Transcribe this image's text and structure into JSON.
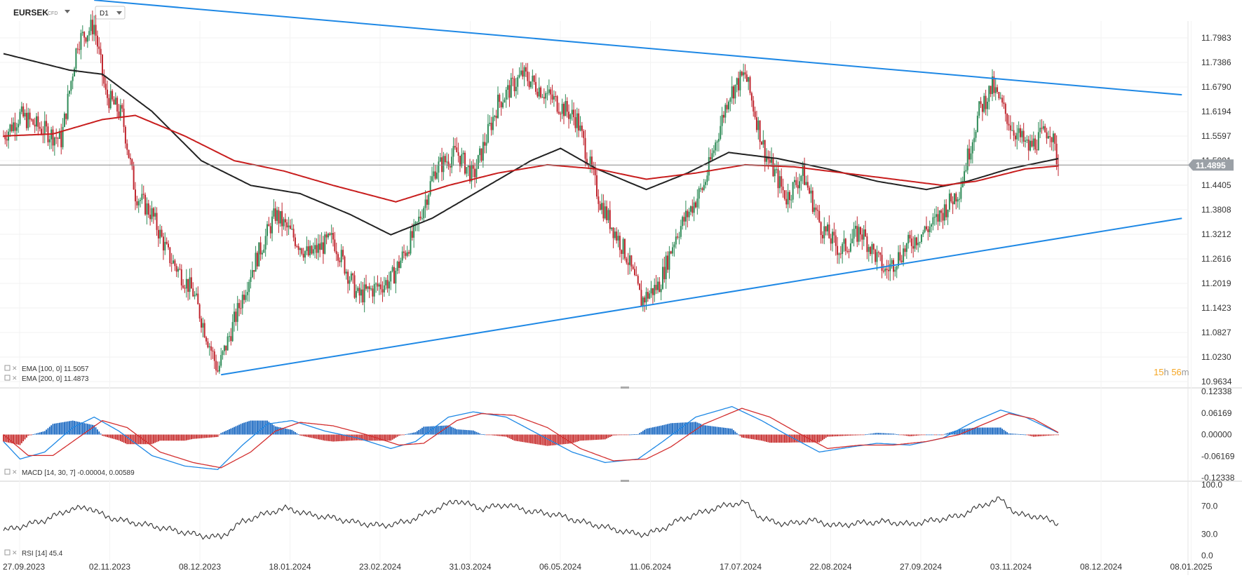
{
  "header": {
    "symbol": "EURSEK",
    "instrument_type": "CFD",
    "timeframe": "D1"
  },
  "colors": {
    "candle_up": "#2e8b57",
    "candle_down": "#c0262f",
    "ema100": "#222222",
    "ema200": "#c81e1e",
    "trendline": "#1e88e5",
    "macd_line": "#1e88e5",
    "signal_line": "#d32f2f",
    "hist_pos": "#1565c0",
    "hist_neg": "#c62828",
    "rsi_line": "#333333",
    "price_tag": "#9aa0a6",
    "timer_accent": "#f5a623"
  },
  "timer": {
    "hours": "15",
    "h_unit": "h",
    "minutes": "56",
    "m_unit": "m"
  },
  "chart_data": [
    {
      "type": "candlestick",
      "pane": "price",
      "symbol": "EURSEK",
      "y_ticks": [
        "11.7983",
        "11.7386",
        "11.6790",
        "11.6194",
        "11.5597",
        "11.5001",
        "11.4405",
        "11.3808",
        "11.3212",
        "11.2616",
        "11.2019",
        "11.1423",
        "11.0827",
        "11.0230",
        "10.9634"
      ],
      "ylim": [
        10.9634,
        11.7983
      ],
      "current_price": "11.4895",
      "x_tick_labels": [
        "27.09.2023",
        "02.11.2023",
        "08.12.2023",
        "18.01.2024",
        "23.02.2024",
        "31.03.2024",
        "06.05.2024",
        "11.06.2024",
        "17.07.2024",
        "22.08.2024",
        "27.09.2024",
        "03.11.2024",
        "08.12.2024",
        "08.01.2025"
      ],
      "series": [
        {
          "name": "EMA [100, 0] 11.5057",
          "kind": "ema",
          "color": "#222222",
          "anchors": [
            [
              0,
              11.76
            ],
            [
              40,
              11.72
            ],
            [
              60,
              11.71
            ],
            [
              90,
              11.62
            ],
            [
              120,
              11.5
            ],
            [
              150,
              11.44
            ],
            [
              180,
              11.42
            ],
            [
              210,
              11.37
            ],
            [
              235,
              11.32
            ],
            [
              260,
              11.36
            ],
            [
              290,
              11.43
            ],
            [
              320,
              11.5
            ],
            [
              338,
              11.53
            ],
            [
              360,
              11.48
            ],
            [
              390,
              11.43
            ],
            [
              415,
              11.47
            ],
            [
              440,
              11.52
            ],
            [
              470,
              11.505
            ],
            [
              500,
              11.48
            ],
            [
              530,
              11.45
            ],
            [
              560,
              11.43
            ],
            [
              585,
              11.45
            ],
            [
              610,
              11.48
            ],
            [
              640,
              11.505
            ]
          ]
        },
        {
          "name": "EMA [200, 0] 11.4873",
          "kind": "ema",
          "color": "#c81e1e",
          "anchors": [
            [
              0,
              11.56
            ],
            [
              30,
              11.565
            ],
            [
              60,
              11.6
            ],
            [
              80,
              11.61
            ],
            [
              110,
              11.56
            ],
            [
              140,
              11.5
            ],
            [
              170,
              11.475
            ],
            [
              200,
              11.44
            ],
            [
              238,
              11.4
            ],
            [
              270,
              11.44
            ],
            [
              300,
              11.47
            ],
            [
              330,
              11.49
            ],
            [
              360,
              11.48
            ],
            [
              390,
              11.455
            ],
            [
              420,
              11.47
            ],
            [
              450,
              11.49
            ],
            [
              480,
              11.485
            ],
            [
              510,
              11.47
            ],
            [
              540,
              11.455
            ],
            [
              570,
              11.44
            ],
            [
              590,
              11.45
            ],
            [
              620,
              11.48
            ],
            [
              640,
              11.4873
            ]
          ]
        }
      ],
      "trendlines": [
        {
          "name": "upper",
          "points": [
            [
              55,
              11.89
            ],
            [
              715,
              11.66
            ]
          ]
        },
        {
          "name": "lower",
          "points": [
            [
              132,
              10.98
            ],
            [
              715,
              11.36
            ]
          ]
        }
      ],
      "legend": [
        "EMA [100, 0] 11.5057",
        "EMA [200, 0] 11.4873"
      ],
      "price_anchors": [
        [
          0,
          11.56
        ],
        [
          10,
          11.61
        ],
        [
          22,
          11.58
        ],
        [
          35,
          11.55
        ],
        [
          45,
          11.79
        ],
        [
          55,
          11.83
        ],
        [
          62,
          11.66
        ],
        [
          72,
          11.61
        ],
        [
          80,
          11.42
        ],
        [
          90,
          11.37
        ],
        [
          100,
          11.27
        ],
        [
          115,
          11.18
        ],
        [
          130,
          10.99
        ],
        [
          150,
          11.23
        ],
        [
          165,
          11.37
        ],
        [
          185,
          11.27
        ],
        [
          200,
          11.31
        ],
        [
          215,
          11.17
        ],
        [
          235,
          11.21
        ],
        [
          250,
          11.33
        ],
        [
          262,
          11.48
        ],
        [
          275,
          11.52
        ],
        [
          285,
          11.46
        ],
        [
          300,
          11.64
        ],
        [
          315,
          11.71
        ],
        [
          330,
          11.66
        ],
        [
          348,
          11.6
        ],
        [
          362,
          11.4
        ],
        [
          378,
          11.27
        ],
        [
          387,
          11.16
        ],
        [
          398,
          11.2
        ],
        [
          408,
          11.32
        ],
        [
          425,
          11.44
        ],
        [
          440,
          11.66
        ],
        [
          450,
          11.71
        ],
        [
          462,
          11.52
        ],
        [
          475,
          11.41
        ],
        [
          485,
          11.47
        ],
        [
          496,
          11.34
        ],
        [
          508,
          11.28
        ],
        [
          520,
          11.33
        ],
        [
          535,
          11.23
        ],
        [
          550,
          11.3
        ],
        [
          565,
          11.35
        ],
        [
          580,
          11.43
        ],
        [
          592,
          11.62
        ],
        [
          600,
          11.68
        ],
        [
          612,
          11.58
        ],
        [
          622,
          11.53
        ],
        [
          635,
          11.58
        ],
        [
          640,
          11.49
        ]
      ],
      "latest_index": 640
    },
    {
      "type": "histogram+line",
      "pane": "macd",
      "name": "MACD [14, 30, 7] -0.00004, 0.00589",
      "y_ticks": [
        "0.12338",
        "0.06169",
        "0.00000",
        "-0.06169",
        "-0.12338"
      ],
      "ylim": [
        -0.12338,
        0.12338
      ],
      "series": [
        {
          "name": "MACD",
          "color": "#1e88e5",
          "anchors": [
            [
              0,
              -0.02
            ],
            [
              10,
              -0.07
            ],
            [
              25,
              -0.05
            ],
            [
              42,
              0.02
            ],
            [
              55,
              0.05
            ],
            [
              70,
              0.01
            ],
            [
              90,
              -0.06
            ],
            [
              110,
              -0.09
            ],
            [
              130,
              -0.1
            ],
            [
              145,
              -0.03
            ],
            [
              160,
              0.03
            ],
            [
              175,
              0.04
            ],
            [
              195,
              0.01
            ],
            [
              215,
              -0.01
            ],
            [
              235,
              -0.04
            ],
            [
              250,
              -0.02
            ],
            [
              270,
              0.05
            ],
            [
              285,
              0.065
            ],
            [
              305,
              0.05
            ],
            [
              325,
              0.0
            ],
            [
              345,
              -0.05
            ],
            [
              365,
              -0.08
            ],
            [
              385,
              -0.07
            ],
            [
              400,
              -0.02
            ],
            [
              420,
              0.05
            ],
            [
              442,
              0.08
            ],
            [
              460,
              0.04
            ],
            [
              475,
              0.0
            ],
            [
              495,
              -0.05
            ],
            [
              515,
              -0.035
            ],
            [
              530,
              -0.025
            ],
            [
              550,
              -0.03
            ],
            [
              570,
              -0.01
            ],
            [
              590,
              0.04
            ],
            [
              605,
              0.07
            ],
            [
              620,
              0.05
            ],
            [
              640,
              0.005
            ]
          ]
        },
        {
          "name": "Signal",
          "color": "#d32f2f",
          "anchors": [
            [
              0,
              0.0
            ],
            [
              15,
              -0.06
            ],
            [
              30,
              -0.06
            ],
            [
              48,
              0.0
            ],
            [
              60,
              0.04
            ],
            [
              75,
              0.02
            ],
            [
              95,
              -0.05
            ],
            [
              115,
              -0.08
            ],
            [
              132,
              -0.095
            ],
            [
              150,
              -0.05
            ],
            [
              165,
              0.01
            ],
            [
              180,
              0.035
            ],
            [
              200,
              0.025
            ],
            [
              220,
              0.0
            ],
            [
              240,
              -0.03
            ],
            [
              255,
              -0.025
            ],
            [
              275,
              0.04
            ],
            [
              290,
              0.06
            ],
            [
              310,
              0.055
            ],
            [
              330,
              0.02
            ],
            [
              350,
              -0.04
            ],
            [
              370,
              -0.075
            ],
            [
              390,
              -0.07
            ],
            [
              405,
              -0.035
            ],
            [
              425,
              0.03
            ],
            [
              448,
              0.075
            ],
            [
              465,
              0.05
            ],
            [
              480,
              0.01
            ],
            [
              500,
              -0.04
            ],
            [
              520,
              -0.03
            ],
            [
              540,
              -0.03
            ],
            [
              560,
              -0.02
            ],
            [
              580,
              0.0
            ],
            [
              595,
              0.03
            ],
            [
              610,
              0.06
            ],
            [
              625,
              0.045
            ],
            [
              640,
              0.0059
            ]
          ]
        }
      ],
      "legend": "MACD [14, 30, 7] -0.00004, 0.00589"
    },
    {
      "type": "line",
      "pane": "rsi",
      "name": "RSI [14] 45.4",
      "y_ticks": [
        "100.0",
        "70.0",
        "30.0",
        "0.0"
      ],
      "ylim": [
        0,
        100
      ],
      "series": [
        {
          "name": "RSI",
          "color": "#333333",
          "anchors": [
            [
              0,
              35
            ],
            [
              12,
              42
            ],
            [
              25,
              50
            ],
            [
              40,
              65
            ],
            [
              52,
              68
            ],
            [
              62,
              55
            ],
            [
              75,
              48
            ],
            [
              90,
              42
            ],
            [
              105,
              35
            ],
            [
              120,
              28
            ],
            [
              132,
              26
            ],
            [
              145,
              48
            ],
            [
              160,
              60
            ],
            [
              172,
              67
            ],
            [
              185,
              58
            ],
            [
              200,
              53
            ],
            [
              215,
              46
            ],
            [
              230,
              42
            ],
            [
              245,
              48
            ],
            [
              260,
              63
            ],
            [
              275,
              78
            ],
            [
              290,
              66
            ],
            [
              305,
              72
            ],
            [
              320,
              62
            ],
            [
              335,
              58
            ],
            [
              350,
              48
            ],
            [
              365,
              40
            ],
            [
              380,
              32
            ],
            [
              390,
              30
            ],
            [
              400,
              38
            ],
            [
              410,
              50
            ],
            [
              425,
              62
            ],
            [
              440,
              72
            ],
            [
              450,
              75
            ],
            [
              460,
              52
            ],
            [
              475,
              44
            ],
            [
              490,
              50
            ],
            [
              505,
              42
            ],
            [
              520,
              46
            ],
            [
              535,
              48
            ],
            [
              550,
              44
            ],
            [
              565,
              50
            ],
            [
              580,
              56
            ],
            [
              595,
              72
            ],
            [
              605,
              80
            ],
            [
              615,
              58
            ],
            [
              625,
              56
            ],
            [
              635,
              50
            ],
            [
              640,
              45.4
            ]
          ]
        }
      ],
      "legend": "RSI [14] 45.4"
    }
  ]
}
